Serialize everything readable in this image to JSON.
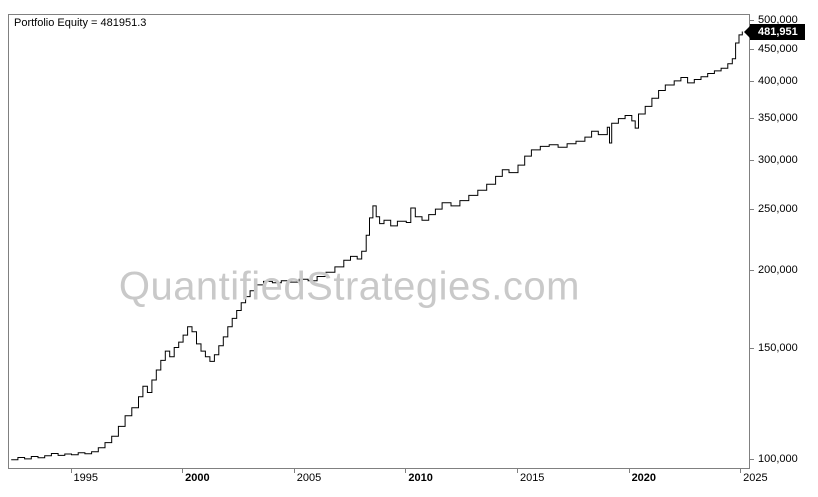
{
  "title": "Portfolio Equity = 481951.3",
  "watermark": "QuantifiedStrategies.com",
  "last_value_label": "481,951",
  "colors": {
    "line": "#000000",
    "watermark": "#c9c9c9",
    "axis": "#808080",
    "badge_bg": "#000000",
    "badge_fg": "#ffffff"
  },
  "chart_data": {
    "type": "line",
    "title": "Portfolio Equity",
    "y_scale": "log",
    "grid": "off",
    "legend": "off",
    "xlim": [
      1992.2,
      2025.35
    ],
    "ylim": [
      97000,
      512000
    ],
    "x_ticks": [
      1995,
      2000,
      2005,
      2010,
      2015,
      2020,
      2025
    ],
    "x_ticks_bold": [
      2000,
      2010,
      2020
    ],
    "y_ticks": [
      100000,
      150000,
      200000,
      250000,
      300000,
      350000,
      400000,
      450000,
      500000
    ],
    "final_value": 481951.3,
    "x": [
      1992.3,
      1992.6,
      1992.9,
      1993.2,
      1993.5,
      1993.8,
      1994.1,
      1994.4,
      1994.7,
      1995.0,
      1995.3,
      1995.6,
      1995.9,
      1996.2,
      1996.5,
      1996.8,
      1997.1,
      1997.4,
      1997.7,
      1998.0,
      1998.2,
      1998.4,
      1998.6,
      1998.8,
      1999.0,
      1999.2,
      1999.4,
      1999.6,
      1999.8,
      2000.0,
      2000.2,
      2000.4,
      2000.6,
      2000.8,
      2001.0,
      2001.2,
      2001.4,
      2001.6,
      2001.8,
      2002.0,
      2002.2,
      2002.4,
      2002.6,
      2002.8,
      2003.0,
      2003.3,
      2003.6,
      2004.0,
      2004.4,
      2004.8,
      2005.2,
      2005.6,
      2006.0,
      2006.4,
      2006.8,
      2007.2,
      2007.5,
      2007.8,
      2008.0,
      2008.2,
      2008.35,
      2008.5,
      2008.65,
      2008.8,
      2009.0,
      2009.3,
      2009.6,
      2010.0,
      2010.2,
      2010.4,
      2010.7,
      2011.0,
      2011.3,
      2011.6,
      2012.0,
      2012.4,
      2012.8,
      2013.2,
      2013.6,
      2014.0,
      2014.3,
      2014.6,
      2015.0,
      2015.3,
      2015.6,
      2016.0,
      2016.4,
      2016.8,
      2017.2,
      2017.6,
      2018.0,
      2018.3,
      2018.6,
      2019.0,
      2019.1,
      2019.2,
      2019.5,
      2019.8,
      2020.1,
      2020.25,
      2020.4,
      2020.7,
      2021.0,
      2021.3,
      2021.6,
      2022.0,
      2022.3,
      2022.6,
      2022.9,
      2023.2,
      2023.5,
      2023.8,
      2024.1,
      2024.4,
      2024.6,
      2024.75,
      2024.9,
      2025.05
    ],
    "values": [
      100000,
      100800,
      100300,
      101200,
      100700,
      101500,
      102300,
      101600,
      102100,
      101800,
      102600,
      102200,
      103000,
      104500,
      106500,
      109000,
      113000,
      117500,
      121000,
      126000,
      131000,
      128000,
      134000,
      139000,
      144000,
      149000,
      146000,
      151000,
      154000,
      158000,
      163000,
      160000,
      153000,
      149000,
      146000,
      143500,
      147000,
      152000,
      157000,
      163000,
      168000,
      173000,
      178000,
      182000,
      186000,
      190000,
      192500,
      191500,
      193000,
      192000,
      194000,
      193000,
      196000,
      199000,
      203000,
      208000,
      211000,
      209000,
      215000,
      228000,
      243000,
      254000,
      244000,
      238000,
      241000,
      236000,
      240000,
      239000,
      252000,
      244000,
      241000,
      246000,
      251000,
      257000,
      254000,
      259000,
      264000,
      269000,
      275000,
      283000,
      290000,
      287000,
      295000,
      305000,
      312000,
      316000,
      318000,
      315000,
      319000,
      322000,
      327000,
      334000,
      330000,
      339000,
      320000,
      344000,
      350000,
      354000,
      347000,
      338000,
      356000,
      366000,
      377000,
      388000,
      396000,
      402000,
      407000,
      399000,
      404000,
      408000,
      413000,
      417000,
      421000,
      428000,
      436000,
      462000,
      476000,
      481951.3
    ]
  }
}
